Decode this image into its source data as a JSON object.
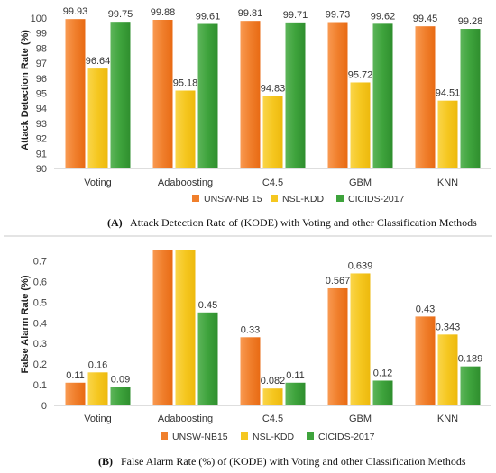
{
  "chart_data": [
    {
      "type": "bar",
      "title": "",
      "ylabel": "Attack Detection Rate (%)",
      "xlabel": "",
      "ylim": [
        90,
        100
      ],
      "yticks": [
        90,
        91,
        92,
        93,
        94,
        95,
        96,
        97,
        98,
        99,
        100
      ],
      "grid": false,
      "legend_position": "bottom",
      "categories": [
        "Voting",
        "Adaboosting",
        "C4.5",
        "GBM",
        "KNN"
      ],
      "series": [
        {
          "name": "UNSW-NB 15",
          "color": "#F07F2C",
          "values": [
            99.93,
            99.88,
            99.81,
            99.73,
            99.45
          ],
          "labels": [
            "99.93",
            "99.88",
            "99.81",
            "99.73",
            "99.45"
          ]
        },
        {
          "name": "NSL-KDD",
          "color": "#F5C720",
          "values": [
            96.64,
            95.18,
            94.83,
            95.72,
            94.51
          ],
          "labels": [
            "96.64",
            "95.18",
            "94.83",
            "95.72",
            "94.51"
          ]
        },
        {
          "name": "CICIDS-2017",
          "color": "#3EA33C",
          "values": [
            99.75,
            99.61,
            99.71,
            99.62,
            99.28
          ],
          "labels": [
            "99.75",
            "99.61",
            "99.71",
            "99.62",
            "99.28"
          ]
        }
      ],
      "caption_prefix": "(A)",
      "caption": "Attack Detection Rate of (KODE) with Voting and other Classification Methods"
    },
    {
      "type": "bar",
      "title": "",
      "ylabel": "False Alarm Rate (%)",
      "xlabel": "",
      "ylim": [
        0,
        0.75
      ],
      "yticks": [
        0,
        0.1,
        0.2,
        0.3,
        0.4,
        0.5,
        0.6,
        0.7
      ],
      "ytick_labels": [
        "0",
        "0.1",
        "0.2",
        "0.3",
        "0.4",
        "0.5",
        "0.6",
        "0.7"
      ],
      "grid": false,
      "legend_position": "bottom",
      "categories": [
        "Voting",
        "Adaboosting",
        "C4.5",
        "GBM",
        "KNN"
      ],
      "series": [
        {
          "name": "UNSW-NB15",
          "color": "#F07F2C",
          "values": [
            0.11,
            0.75,
            0.33,
            0.567,
            0.43
          ],
          "labels": [
            "0.11",
            "",
            "0.33",
            "0.567",
            "0.43"
          ]
        },
        {
          "name": "NSL-KDD",
          "color": "#F5C720",
          "values": [
            0.16,
            0.75,
            0.082,
            0.639,
            0.343
          ],
          "labels": [
            "0.16",
            "",
            "0.082",
            "0.639",
            "0.343"
          ]
        },
        {
          "name": "CICIDS-2017",
          "color": "#3EA33C",
          "values": [
            0.09,
            0.45,
            0.11,
            0.12,
            0.189
          ],
          "labels": [
            "0.09",
            "0.45",
            "0.11",
            "0.12",
            "0.189"
          ]
        }
      ],
      "caption_prefix": "(B)",
      "caption": "False Alarm Rate (%) of (KODE) with Voting and other Classification Methods"
    }
  ]
}
